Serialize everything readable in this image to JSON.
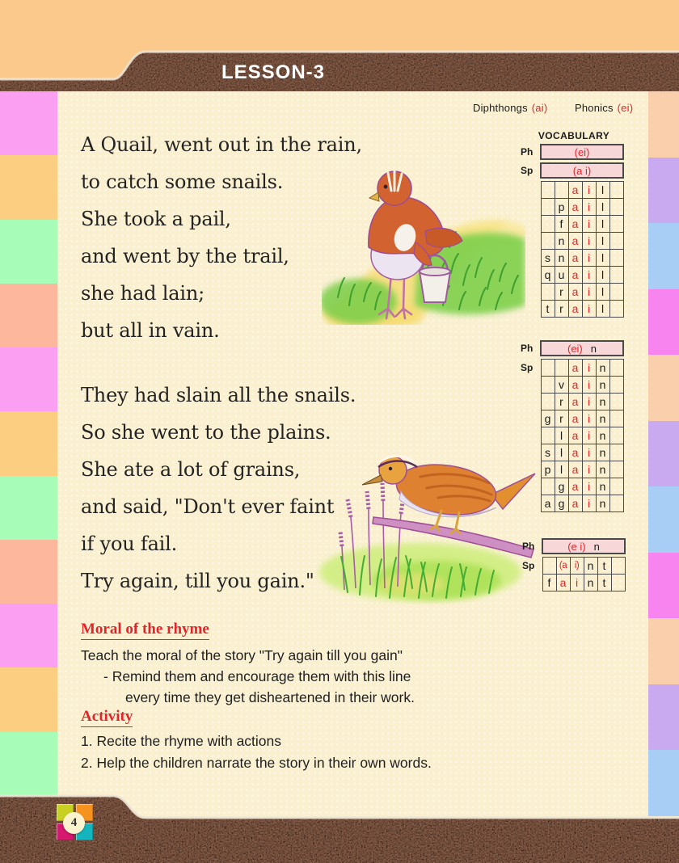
{
  "header": {
    "lesson_title": "LESSON-3"
  },
  "top_labels": {
    "diphthongs_label": "Diphthongs",
    "diphthongs_value": "(ai)",
    "phonics_label": "Phonics",
    "phonics_value": "(ei)"
  },
  "poem": {
    "stanza1": [
      "A Quail, went out in the rain,",
      "to catch some snails.",
      "She took a pail,",
      "and went by the trail,",
      "she had lain;",
      "but all in vain."
    ],
    "stanza2": [
      "They had slain all the snails.",
      "So she went to the plains.",
      "She ate a lot of grains,",
      "and said, \"Don't ever faint",
      "if you fail.",
      "Try again, till you gain.\""
    ]
  },
  "vocabulary": {
    "title": "VOCABULARY",
    "ph_label": "Ph",
    "sp_label": "Sp",
    "tables": [
      {
        "ph_red": "(ei)",
        "ph_black": "",
        "sp_bar": "(a i)",
        "rows": [
          [
            "",
            "",
            "*a",
            "*i",
            "l",
            ""
          ],
          [
            "",
            "p",
            "*a",
            "*i",
            "l",
            ""
          ],
          [
            "",
            "f",
            "*a",
            "*i",
            "l",
            ""
          ],
          [
            "",
            "n",
            "*a",
            "*i",
            "l",
            ""
          ],
          [
            "s",
            "n",
            "*a",
            "*i",
            "l",
            ""
          ],
          [
            "q",
            "u",
            "*a",
            "*i",
            "l",
            ""
          ],
          [
            "",
            "r",
            "*a",
            "*i",
            "l",
            ""
          ],
          [
            "t",
            "r",
            "*a",
            "*i",
            "l",
            ""
          ]
        ]
      },
      {
        "ph_red": "(ei)",
        "ph_black": "n",
        "sp_bar": "",
        "rows": [
          [
            "",
            "",
            "*a",
            "*i",
            "n",
            ""
          ],
          [
            "",
            "v",
            "*a",
            "*i",
            "n",
            ""
          ],
          [
            "",
            "r",
            "*a",
            "*i",
            "n",
            ""
          ],
          [
            "g",
            "r",
            "*a",
            "*i",
            "n",
            ""
          ],
          [
            "",
            "l",
            "*a",
            "*i",
            "n",
            ""
          ],
          [
            "s",
            "l",
            "*a",
            "*i",
            "n",
            ""
          ],
          [
            "p",
            "l",
            "*a",
            "*i",
            "n",
            ""
          ],
          [
            "",
            "g",
            "*a",
            "*i",
            "n",
            ""
          ],
          [
            "a",
            "g",
            "*a",
            "*i",
            "n",
            ""
          ]
        ]
      },
      {
        "ph_red": "(e i)",
        "ph_black": "n",
        "sp_bar": "",
        "rows": [
          [
            "",
            "*(a",
            "*i)",
            "n",
            "t",
            ""
          ],
          [
            "f",
            "*a",
            "*i",
            "n",
            "t",
            ""
          ]
        ]
      }
    ]
  },
  "moral": {
    "heading": "Moral of the rhyme",
    "lines": [
      {
        "text": "Teach the moral of the story \"Try again till you gain\"",
        "indent": 0
      },
      {
        "text": "- Remind them and encourage them with this line",
        "indent": 28
      },
      {
        "text": "every time they get disheartened in their work.",
        "indent": 55
      }
    ]
  },
  "activity": {
    "heading": "Activity",
    "items": [
      "1. Recite the rhyme with actions",
      "2. Help the children narrate the story in their own words."
    ]
  },
  "footer": {
    "page_number": "4"
  },
  "colors": {
    "accent_red": "#E5242A",
    "pink_bar": "#F8D7D8",
    "brown_bar": "#9A6A52",
    "page_cream": "#FAF0D0",
    "top_band": "#FBC98B",
    "logo_squares": [
      "#C8D021",
      "#F6921E",
      "#D6186E",
      "#14B5BE"
    ],
    "left_stripes": [
      "#FB9FF3",
      "#FBCE81",
      "#A7FCB7",
      "#FCB79D",
      "#FB9FF3",
      "#FBCE81",
      "#A7FCB7",
      "#FCB79D",
      "#FB9FF3",
      "#FBCE81",
      "#A7FCB7"
    ],
    "right_stripes": [
      "#F9CFAC",
      "#C9AAF1",
      "#A9CEF6",
      "#F884EF",
      "#F9CFAC",
      "#C9AAF1",
      "#A9CEF6",
      "#F884EF",
      "#F9CFAC",
      "#C9AAF1",
      "#A9CEF6"
    ]
  }
}
